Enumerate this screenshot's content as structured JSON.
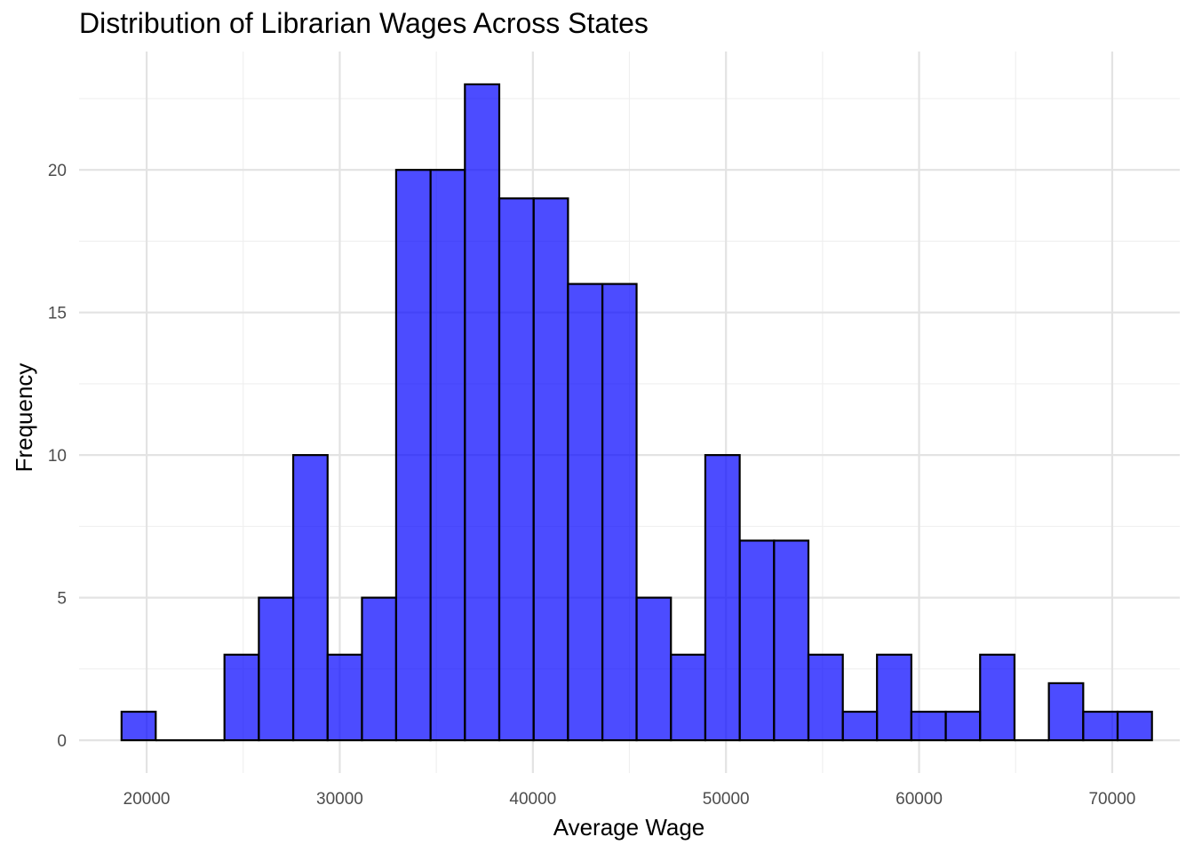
{
  "chart_data": {
    "type": "histogram",
    "title": "Distribution of Librarian Wages Across States",
    "xlabel": "Average Wage",
    "ylabel": "Frequency",
    "bar_color": "#0000FF",
    "bar_opacity": 0.7,
    "bar_outline": "#000000",
    "x_ticks": [
      20000,
      30000,
      40000,
      50000,
      60000,
      70000
    ],
    "y_ticks": [
      0,
      5,
      10,
      15,
      20
    ],
    "xlim": [
      16500,
      73500
    ],
    "ylim": [
      -1.15,
      24.15
    ],
    "bins": [
      {
        "x0": 18700,
        "x1": 20470,
        "count": 1
      },
      {
        "x0": 20470,
        "x1": 22250,
        "count": 0
      },
      {
        "x0": 22250,
        "x1": 24030,
        "count": 0
      },
      {
        "x0": 24030,
        "x1": 25810,
        "count": 3
      },
      {
        "x0": 25810,
        "x1": 27590,
        "count": 5
      },
      {
        "x0": 27590,
        "x1": 29370,
        "count": 10
      },
      {
        "x0": 29370,
        "x1": 31150,
        "count": 3
      },
      {
        "x0": 31150,
        "x1": 32920,
        "count": 5
      },
      {
        "x0": 32920,
        "x1": 34700,
        "count": 20
      },
      {
        "x0": 34700,
        "x1": 36480,
        "count": 20
      },
      {
        "x0": 36480,
        "x1": 38260,
        "count": 23
      },
      {
        "x0": 38260,
        "x1": 40040,
        "count": 19
      },
      {
        "x0": 40040,
        "x1": 41820,
        "count": 19
      },
      {
        "x0": 41820,
        "x1": 43600,
        "count": 16
      },
      {
        "x0": 43600,
        "x1": 45370,
        "count": 16
      },
      {
        "x0": 45370,
        "x1": 47150,
        "count": 5
      },
      {
        "x0": 47150,
        "x1": 48930,
        "count": 3
      },
      {
        "x0": 48930,
        "x1": 50710,
        "count": 10
      },
      {
        "x0": 50710,
        "x1": 52490,
        "count": 7
      },
      {
        "x0": 52490,
        "x1": 54270,
        "count": 7
      },
      {
        "x0": 54270,
        "x1": 56050,
        "count": 3
      },
      {
        "x0": 56050,
        "x1": 57820,
        "count": 1
      },
      {
        "x0": 57820,
        "x1": 59600,
        "count": 3
      },
      {
        "x0": 59600,
        "x1": 61380,
        "count": 1
      },
      {
        "x0": 61380,
        "x1": 63160,
        "count": 1
      },
      {
        "x0": 63160,
        "x1": 64940,
        "count": 3
      },
      {
        "x0": 64940,
        "x1": 66720,
        "count": 0
      },
      {
        "x0": 66720,
        "x1": 68500,
        "count": 2
      },
      {
        "x0": 68500,
        "x1": 70280,
        "count": 1
      },
      {
        "x0": 70280,
        "x1": 72060,
        "count": 1
      }
    ],
    "grid": true,
    "legend": "none"
  }
}
